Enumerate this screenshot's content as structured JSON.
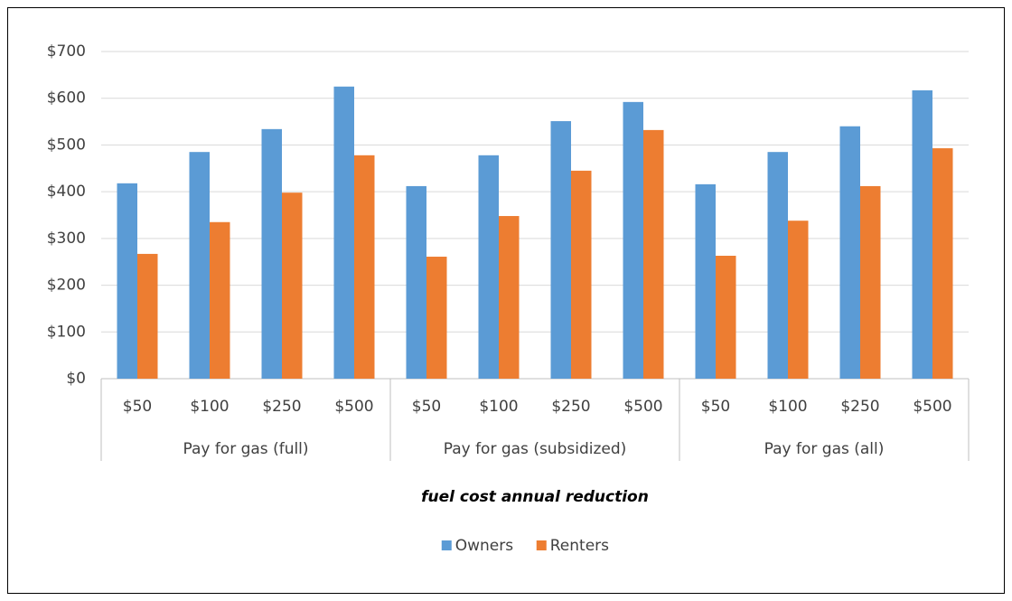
{
  "chart_data": {
    "type": "bar",
    "x_axis_label": "fuel cost annual reduction",
    "categories": [
      "$50",
      "$100",
      "$250",
      "$500",
      "$50",
      "$100",
      "$250",
      "$500",
      "$50",
      "$100",
      "$250",
      "$500"
    ],
    "category_groups": [
      "Pay for gas (full)",
      "Pay for gas (subsidized)",
      "Pay for gas (all)"
    ],
    "series": [
      {
        "name": "Owners",
        "color": "#5b9bd5",
        "values": [
          418,
          485,
          534,
          625,
          412,
          478,
          551,
          592,
          416,
          485,
          540,
          617
        ]
      },
      {
        "name": "Renters",
        "color": "#ed7d31",
        "values": [
          267,
          335,
          398,
          478,
          261,
          348,
          445,
          532,
          263,
          338,
          412,
          493
        ]
      }
    ],
    "ylim": [
      0,
      700
    ],
    "yticks": [
      {
        "value": 0,
        "label": "$0"
      },
      {
        "value": 100,
        "label": "$100"
      },
      {
        "value": 200,
        "label": "$200"
      },
      {
        "value": 300,
        "label": "$300"
      },
      {
        "value": 400,
        "label": "$400"
      },
      {
        "value": 500,
        "label": "$500"
      },
      {
        "value": 600,
        "label": "$600"
      },
      {
        "value": 700,
        "label": "$700"
      }
    ],
    "grid": true,
    "legend": "bottom"
  }
}
